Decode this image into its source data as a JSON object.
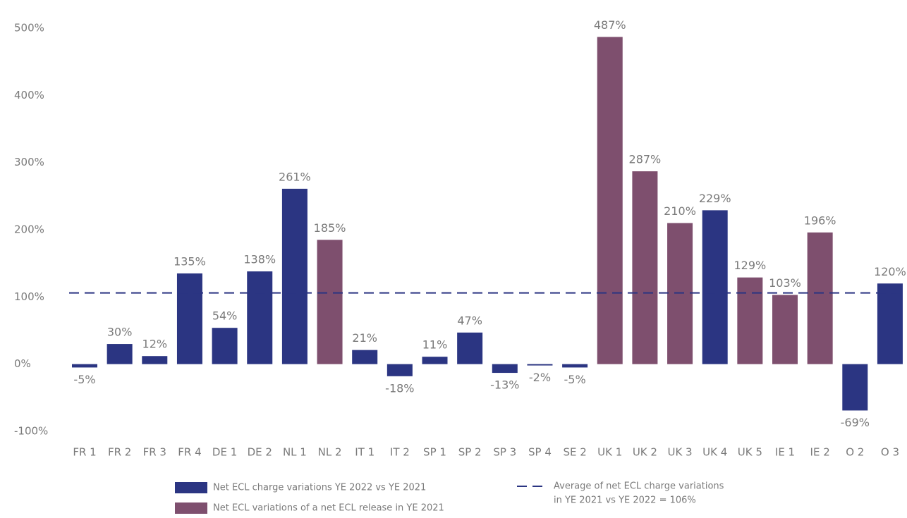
{
  "chart_data": {
    "type": "bar",
    "categories": [
      "FR 1",
      "FR 2",
      "FR 3",
      "FR 4",
      "DE 1",
      "DE 2",
      "NL 1",
      "NL 2",
      "IT 1",
      "IT 2",
      "SP 1",
      "SP 2",
      "SP 3",
      "SP 4",
      "SE 2",
      "UK 1",
      "UK 2",
      "UK 3",
      "UK 4",
      "UK 5",
      "IE 1",
      "IE 2",
      "O 2",
      "O 3"
    ],
    "series": [
      {
        "name": "Net ECL charge variations YE 2022 vs YE 2021",
        "color": "#2b3582",
        "values": [
          -5,
          30,
          12,
          135,
          54,
          138,
          261,
          null,
          21,
          -18,
          11,
          47,
          -13,
          -2,
          -5,
          null,
          null,
          null,
          229,
          null,
          null,
          null,
          -69,
          120
        ],
        "value_labels": [
          "-5%",
          "30%",
          "12%",
          "135%",
          "54%",
          "138%",
          "261%",
          null,
          "21%",
          "-18%",
          "11%",
          "47%",
          "-13%",
          "-2%",
          "-5%",
          null,
          null,
          null,
          "229%",
          null,
          null,
          null,
          "-69%",
          "120%"
        ]
      },
      {
        "name": "Net ECL variations of a net ECL release in YE 2021",
        "color": "#7e4f6e",
        "values": [
          null,
          null,
          null,
          null,
          null,
          null,
          null,
          185,
          null,
          null,
          null,
          null,
          null,
          null,
          null,
          487,
          287,
          210,
          null,
          129,
          103,
          196,
          null,
          null
        ],
        "value_labels": [
          null,
          null,
          null,
          null,
          null,
          null,
          null,
          "185%",
          null,
          null,
          null,
          null,
          null,
          null,
          null,
          "487%",
          "287%",
          "210%",
          null,
          "129%",
          "103%",
          "196%",
          null,
          null
        ]
      }
    ],
    "average": {
      "value": 106,
      "color": "#2b3582",
      "label_lines": [
        "Average of net ECL charge variations",
        "in YE 2021 vs YE 2022 = 106%"
      ]
    },
    "ylim": [
      -100,
      500
    ],
    "yticks": [
      {
        "value": -100,
        "label": "-100%"
      },
      {
        "value": 0,
        "label": "0%"
      },
      {
        "value": 100,
        "label": "100%"
      },
      {
        "value": 200,
        "label": "200%"
      },
      {
        "value": 300,
        "label": "300%"
      },
      {
        "value": 400,
        "label": "400%"
      },
      {
        "value": 500,
        "label": "500%"
      }
    ],
    "grid": false,
    "legend": "bottom"
  }
}
